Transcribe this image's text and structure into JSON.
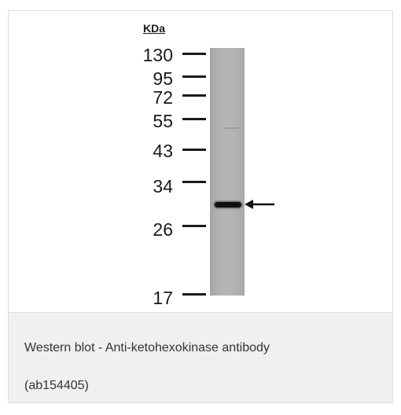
{
  "figure": {
    "unit_label": "KDa",
    "markers": [
      "130",
      "95",
      "72",
      "55",
      "43",
      "34",
      "26",
      "17"
    ],
    "band_indicator": "arrow-left-icon"
  },
  "caption": {
    "line1": "Western blot - Anti-ketohexokinase antibody",
    "line2": "(ab154405)"
  },
  "colors": {
    "caption_background": "#eff0f0",
    "lane": "#b3b3b3",
    "band": "#111111"
  }
}
